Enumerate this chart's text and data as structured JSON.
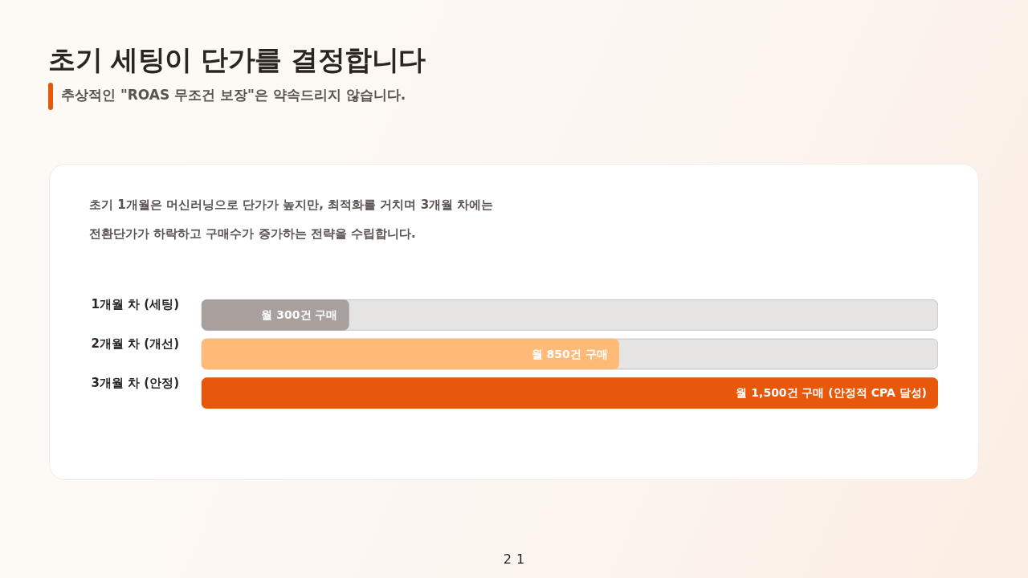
{
  "chart_data": {
    "type": "bar",
    "orientation": "horizontal",
    "title": "초기 세팅이 단가를 결정합니다",
    "subtitle": "추상적인 \"ROAS 무조건 보장\"은 약속드리지 않습니다.",
    "annotations": [
      "초기 1개월은 머신러닝으로 단가가 높지만, 최적화를 거치며 3개월 차에는",
      "전환단가가 하락하고 구매수가 증가하는 전략을 수립합니다.",
      "21"
    ],
    "categories": [
      "1개월 차 (세팅)",
      "2개월 차 (개선)",
      "3개월 차 (안정)"
    ],
    "values": [
      300,
      850,
      1500
    ],
    "colors": [
      "#a7a09c",
      "#ffba78",
      "#e8580c"
    ],
    "value_labels": [
      "월 300건 구매",
      "월 850건 구매",
      "월 1,500건 구매 (안정적 CPA 달성)"
    ]
  }
}
